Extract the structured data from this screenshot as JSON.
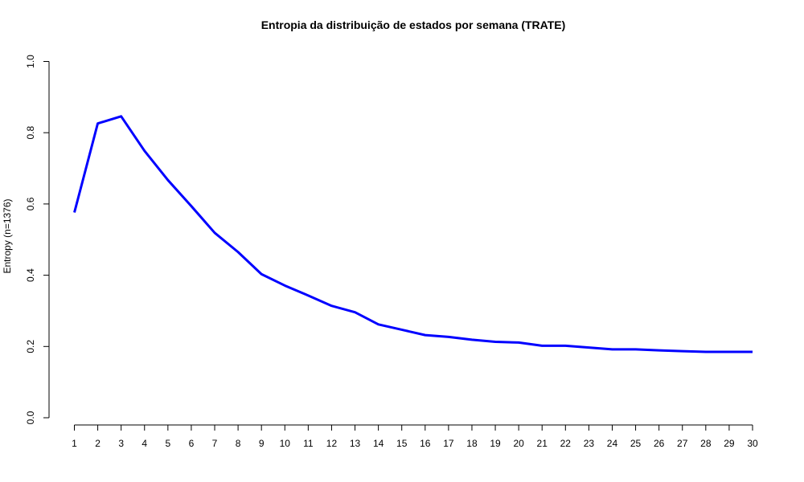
{
  "chart_data": {
    "type": "line",
    "title": "Entropia da distribuição de estados por semana (TRATE)",
    "xlabel": "",
    "ylabel": "Entropy (n=1376)",
    "x": [
      1,
      2,
      3,
      4,
      5,
      6,
      7,
      8,
      9,
      10,
      11,
      12,
      13,
      14,
      15,
      16,
      17,
      18,
      19,
      20,
      21,
      22,
      23,
      24,
      25,
      26,
      27,
      28,
      29,
      30
    ],
    "series": [
      {
        "values": [
          0.576,
          0.826,
          0.846,
          0.749,
          0.667,
          0.594,
          0.519,
          0.465,
          0.403,
          0.371,
          0.343,
          0.314,
          0.296,
          0.262,
          0.247,
          0.232,
          0.227,
          0.219,
          0.213,
          0.211,
          0.202,
          0.202,
          0.197,
          0.192,
          0.192,
          0.189,
          0.187,
          0.185,
          0.185,
          0.185
        ],
        "color": "#0000ff"
      }
    ],
    "xlim": [
      1,
      30
    ],
    "ylim": [
      0,
      1
    ],
    "x_ticks": [
      "1",
      "2",
      "3",
      "4",
      "5",
      "6",
      "7",
      "8",
      "9",
      "10",
      "11",
      "12",
      "13",
      "14",
      "15",
      "16",
      "17",
      "18",
      "19",
      "20",
      "21",
      "22",
      "23",
      "24",
      "25",
      "26",
      "27",
      "28",
      "29",
      "30"
    ],
    "y_ticks": [
      "0.0",
      "0.2",
      "0.4",
      "0.6",
      "0.8",
      "1.0"
    ],
    "grid": false,
    "legend": "none"
  }
}
